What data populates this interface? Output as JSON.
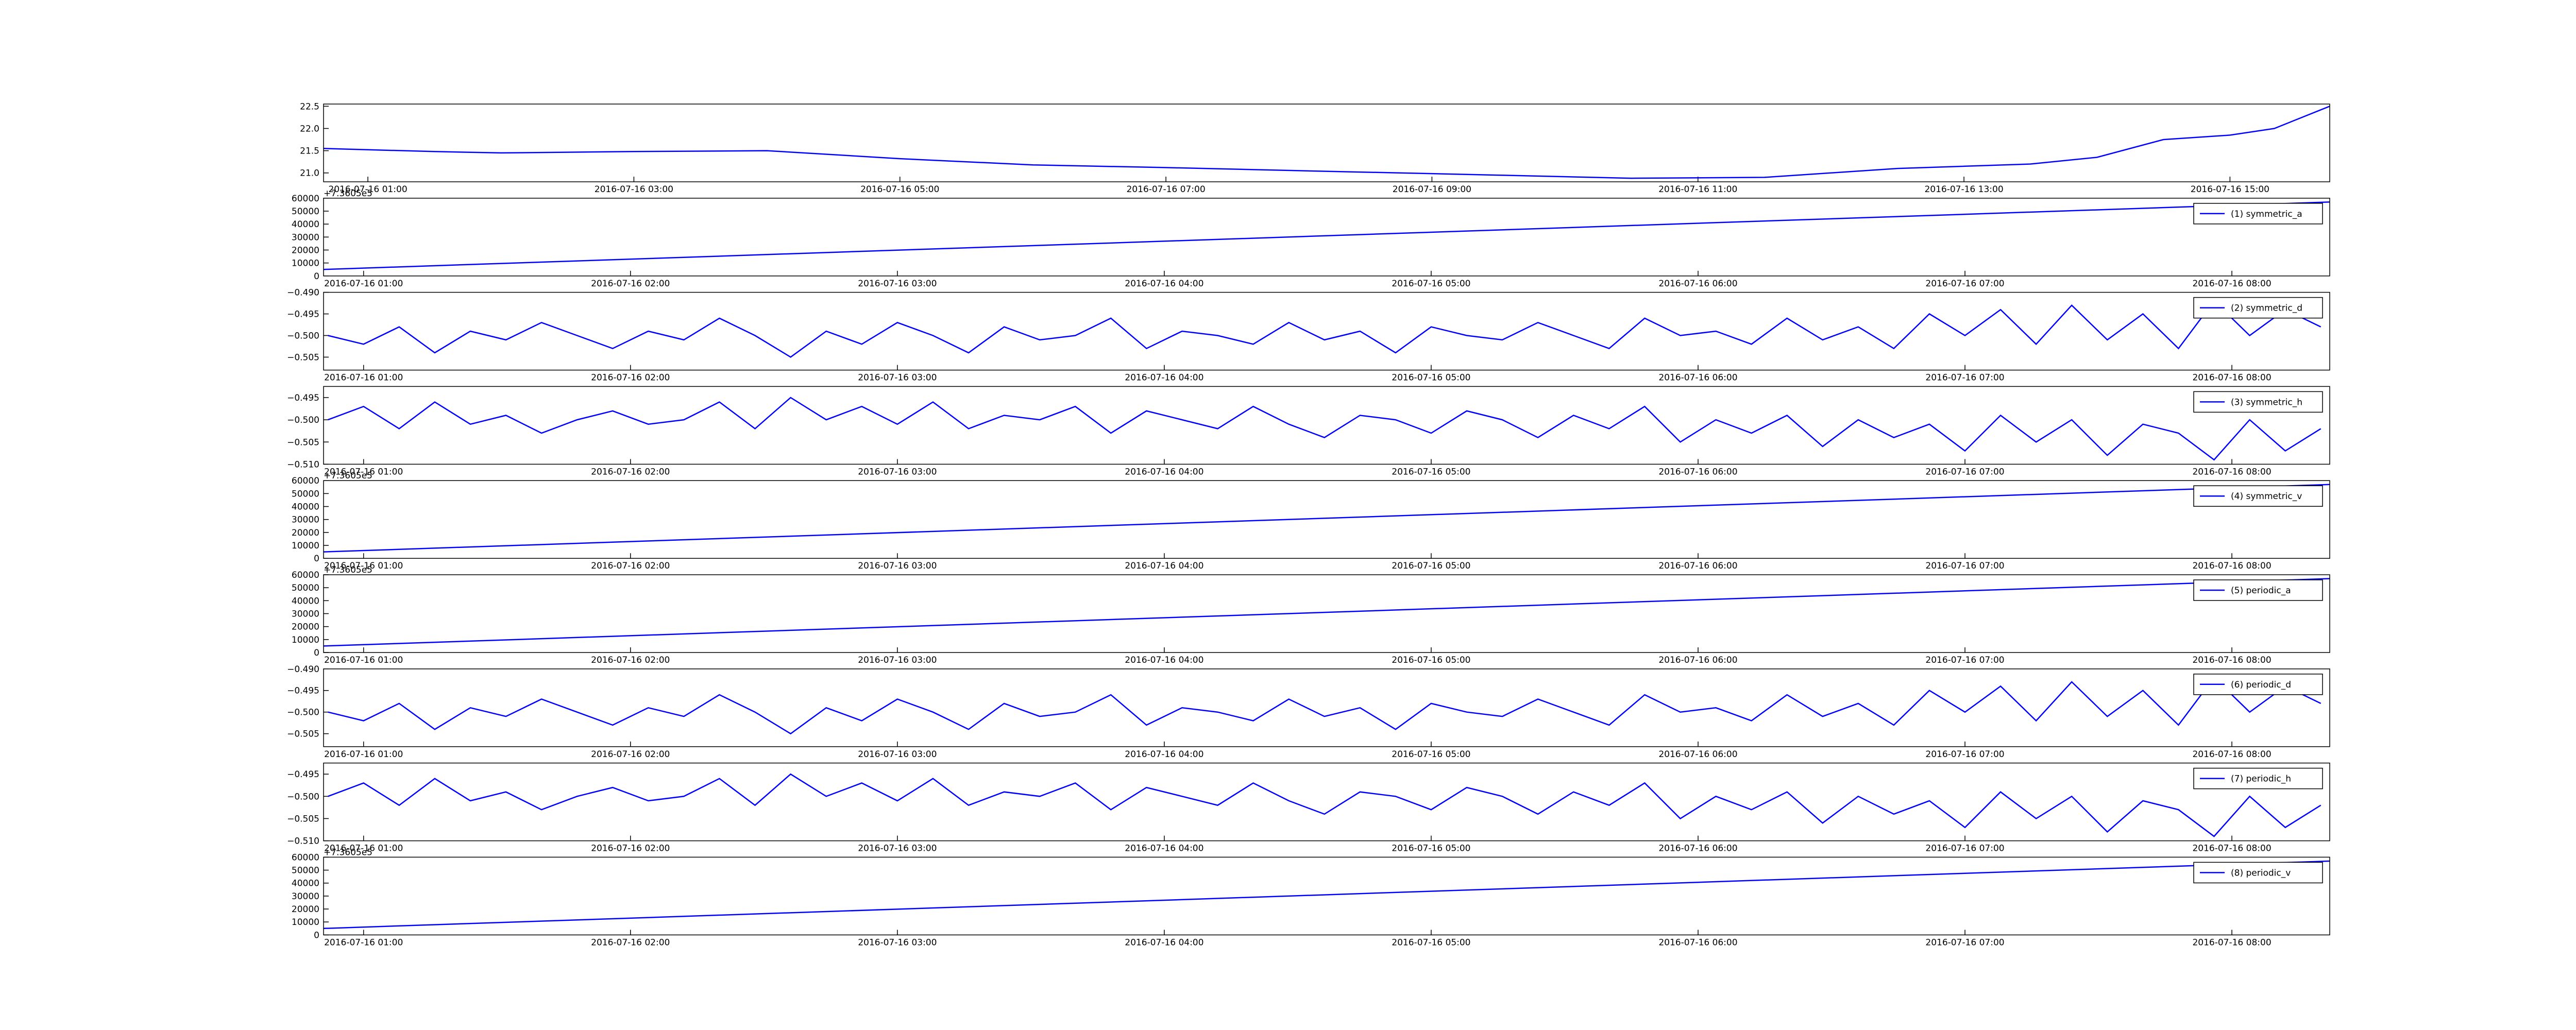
{
  "chart_data": [
    {
      "type": "line",
      "x": [
        "2016-07-16 00:40",
        "2016-07-16 01:30",
        "2016-07-16 02:00",
        "2016-07-16 03:00",
        "2016-07-16 04:00",
        "2016-07-16 05:00",
        "2016-07-16 06:00",
        "2016-07-16 07:00",
        "2016-07-16 08:00",
        "2016-07-16 09:30",
        "2016-07-16 10:30",
        "2016-07-16 11:30",
        "2016-07-16 12:30",
        "2016-07-16 13:30",
        "2016-07-16 14:00",
        "2016-07-16 14:30",
        "2016-07-16 15:00",
        "2016-07-16 15:20",
        "2016-07-16 15:45"
      ],
      "series": [
        {
          "color": "#0000ff",
          "values": [
            21.55,
            21.48,
            21.45,
            21.48,
            21.5,
            21.32,
            21.18,
            21.12,
            21.05,
            20.95,
            20.88,
            20.9,
            21.1,
            21.2,
            21.35,
            21.75,
            21.85,
            22.0,
            22.5
          ]
        }
      ],
      "xlim": [
        "2016-07-16 00:40",
        "2016-07-16 15:45"
      ],
      "xticks": [
        "2016-07-16 01:00",
        "2016-07-16 03:00",
        "2016-07-16 05:00",
        "2016-07-16 07:00",
        "2016-07-16 09:00",
        "2016-07-16 11:00",
        "2016-07-16 13:00",
        "2016-07-16 15:00"
      ],
      "ylim": [
        20.8,
        22.55
      ],
      "yticks": [
        {
          "value": 21,
          "label": "21.0"
        },
        21.5,
        {
          "value": 22,
          "label": "22.0"
        },
        22.5
      ]
    },
    {
      "type": "line",
      "x": [
        "2016-07-16 00:51",
        "2016-07-16 08:22"
      ],
      "series": [
        {
          "name": "(1) symmetric_a",
          "color": "#0000ff",
          "values": [
            5000,
            57000
          ]
        }
      ],
      "xlim": [
        "2016-07-16 00:51",
        "2016-07-16 08:22"
      ],
      "xticks": [
        "2016-07-16 01:00",
        "2016-07-16 02:00",
        "2016-07-16 03:00",
        "2016-07-16 04:00",
        "2016-07-16 05:00",
        "2016-07-16 06:00",
        "2016-07-16 07:00",
        "2016-07-16 08:00"
      ],
      "ylim": [
        0,
        60000
      ],
      "yticks": [
        0,
        10000,
        20000,
        30000,
        40000,
        50000,
        60000
      ],
      "offset_text": "+7.3605e5",
      "legend": "upper right"
    },
    {
      "type": "line",
      "x": [
        "2016-07-16 00:52",
        "2016-07-16 01:00",
        "2016-07-16 01:08",
        "2016-07-16 01:16",
        "2016-07-16 01:24",
        "2016-07-16 01:32",
        "2016-07-16 01:40",
        "2016-07-16 01:48",
        "2016-07-16 01:56",
        "2016-07-16 02:04",
        "2016-07-16 02:12",
        "2016-07-16 02:20",
        "2016-07-16 02:28",
        "2016-07-16 02:36",
        "2016-07-16 02:44",
        "2016-07-16 02:52",
        "2016-07-16 03:00",
        "2016-07-16 03:08",
        "2016-07-16 03:16",
        "2016-07-16 03:24",
        "2016-07-16 03:32",
        "2016-07-16 03:40",
        "2016-07-16 03:48",
        "2016-07-16 03:56",
        "2016-07-16 04:04",
        "2016-07-16 04:12",
        "2016-07-16 04:20",
        "2016-07-16 04:28",
        "2016-07-16 04:36",
        "2016-07-16 04:44",
        "2016-07-16 04:52",
        "2016-07-16 05:00",
        "2016-07-16 05:08",
        "2016-07-16 05:16",
        "2016-07-16 05:24",
        "2016-07-16 05:32",
        "2016-07-16 05:40",
        "2016-07-16 05:48",
        "2016-07-16 05:56",
        "2016-07-16 06:04",
        "2016-07-16 06:12",
        "2016-07-16 06:20",
        "2016-07-16 06:28",
        "2016-07-16 06:36",
        "2016-07-16 06:44",
        "2016-07-16 06:52",
        "2016-07-16 07:00",
        "2016-07-16 07:08",
        "2016-07-16 07:16",
        "2016-07-16 07:24",
        "2016-07-16 07:32",
        "2016-07-16 07:40",
        "2016-07-16 07:48",
        "2016-07-16 07:56",
        "2016-07-16 08:04",
        "2016-07-16 08:12",
        "2016-07-16 08:20"
      ],
      "series": [
        {
          "name": "(2) symmetric_d",
          "color": "#0000ff",
          "values": [
            -0.5,
            -0.502,
            -0.498,
            -0.504,
            -0.499,
            -0.501,
            -0.497,
            -0.5,
            -0.503,
            -0.499,
            -0.501,
            -0.496,
            -0.5,
            -0.505,
            -0.499,
            -0.502,
            -0.497,
            -0.5,
            -0.504,
            -0.498,
            -0.501,
            -0.5,
            -0.496,
            -0.503,
            -0.499,
            -0.5,
            -0.502,
            -0.497,
            -0.501,
            -0.499,
            -0.504,
            -0.498,
            -0.5,
            -0.501,
            -0.497,
            -0.5,
            -0.503,
            -0.496,
            -0.5,
            -0.499,
            -0.502,
            -0.496,
            -0.501,
            -0.498,
            -0.503,
            -0.495,
            -0.5,
            -0.494,
            -0.502,
            -0.493,
            -0.501,
            -0.495,
            -0.503,
            -0.492,
            -0.5,
            -0.494,
            -0.498
          ]
        }
      ],
      "xlim": [
        "2016-07-16 00:51",
        "2016-07-16 08:22"
      ],
      "xticks": [
        "2016-07-16 01:00",
        "2016-07-16 02:00",
        "2016-07-16 03:00",
        "2016-07-16 04:00",
        "2016-07-16 05:00",
        "2016-07-16 06:00",
        "2016-07-16 07:00",
        "2016-07-16 08:00"
      ],
      "ylim": [
        -0.508,
        -0.49
      ],
      "yticks": [
        {
          "value": -0.49,
          "label": "−0.490"
        },
        {
          "value": -0.495,
          "label": "−0.495"
        },
        {
          "value": -0.5,
          "label": "−0.500"
        },
        {
          "value": -0.505,
          "label": "−0.505"
        }
      ],
      "legend": "upper right"
    },
    {
      "type": "line",
      "x": [
        "2016-07-16 00:52",
        "2016-07-16 01:00",
        "2016-07-16 01:08",
        "2016-07-16 01:16",
        "2016-07-16 01:24",
        "2016-07-16 01:32",
        "2016-07-16 01:40",
        "2016-07-16 01:48",
        "2016-07-16 01:56",
        "2016-07-16 02:04",
        "2016-07-16 02:12",
        "2016-07-16 02:20",
        "2016-07-16 02:28",
        "2016-07-16 02:36",
        "2016-07-16 02:44",
        "2016-07-16 02:52",
        "2016-07-16 03:00",
        "2016-07-16 03:08",
        "2016-07-16 03:16",
        "2016-07-16 03:24",
        "2016-07-16 03:32",
        "2016-07-16 03:40",
        "2016-07-16 03:48",
        "2016-07-16 03:56",
        "2016-07-16 04:04",
        "2016-07-16 04:12",
        "2016-07-16 04:20",
        "2016-07-16 04:28",
        "2016-07-16 04:36",
        "2016-07-16 04:44",
        "2016-07-16 04:52",
        "2016-07-16 05:00",
        "2016-07-16 05:08",
        "2016-07-16 05:16",
        "2016-07-16 05:24",
        "2016-07-16 05:32",
        "2016-07-16 05:40",
        "2016-07-16 05:48",
        "2016-07-16 05:56",
        "2016-07-16 06:04",
        "2016-07-16 06:12",
        "2016-07-16 06:20",
        "2016-07-16 06:28",
        "2016-07-16 06:36",
        "2016-07-16 06:44",
        "2016-07-16 06:52",
        "2016-07-16 07:00",
        "2016-07-16 07:08",
        "2016-07-16 07:16",
        "2016-07-16 07:24",
        "2016-07-16 07:32",
        "2016-07-16 07:40",
        "2016-07-16 07:48",
        "2016-07-16 07:56",
        "2016-07-16 08:04",
        "2016-07-16 08:12",
        "2016-07-16 08:20"
      ],
      "series": [
        {
          "name": "(3) symmetric_h",
          "color": "#0000ff",
          "values": [
            -0.5,
            -0.497,
            -0.502,
            -0.496,
            -0.501,
            -0.499,
            -0.503,
            -0.5,
            -0.498,
            -0.501,
            -0.5,
            -0.496,
            -0.502,
            -0.495,
            -0.5,
            -0.497,
            -0.501,
            -0.496,
            -0.502,
            -0.499,
            -0.5,
            -0.497,
            -0.503,
            -0.498,
            -0.5,
            -0.502,
            -0.497,
            -0.501,
            -0.504,
            -0.499,
            -0.5,
            -0.503,
            -0.498,
            -0.5,
            -0.504,
            -0.499,
            -0.502,
            -0.497,
            -0.505,
            -0.5,
            -0.503,
            -0.499,
            -0.506,
            -0.5,
            -0.504,
            -0.501,
            -0.507,
            -0.499,
            -0.505,
            -0.5,
            -0.508,
            -0.501,
            -0.503,
            -0.509,
            -0.5,
            -0.507,
            -0.502
          ]
        }
      ],
      "xlim": [
        "2016-07-16 00:51",
        "2016-07-16 08:22"
      ],
      "xticks": [
        "2016-07-16 01:00",
        "2016-07-16 02:00",
        "2016-07-16 03:00",
        "2016-07-16 04:00",
        "2016-07-16 05:00",
        "2016-07-16 06:00",
        "2016-07-16 07:00",
        "2016-07-16 08:00"
      ],
      "ylim": [
        -0.51,
        -0.4925
      ],
      "yticks": [
        {
          "value": -0.495,
          "label": "−0.495"
        },
        {
          "value": -0.5,
          "label": "−0.500"
        },
        {
          "value": -0.505,
          "label": "−0.505"
        },
        {
          "value": -0.51,
          "label": "−0.510"
        }
      ],
      "legend": "upper right"
    },
    {
      "type": "line",
      "x": [
        "2016-07-16 00:51",
        "2016-07-16 08:22"
      ],
      "series": [
        {
          "name": "(4) symmetric_v",
          "color": "#0000ff",
          "values": [
            5000,
            57000
          ]
        }
      ],
      "xlim": [
        "2016-07-16 00:51",
        "2016-07-16 08:22"
      ],
      "xticks": [
        "2016-07-16 01:00",
        "2016-07-16 02:00",
        "2016-07-16 03:00",
        "2016-07-16 04:00",
        "2016-07-16 05:00",
        "2016-07-16 06:00",
        "2016-07-16 07:00",
        "2016-07-16 08:00"
      ],
      "ylim": [
        0,
        60000
      ],
      "yticks": [
        0,
        10000,
        20000,
        30000,
        40000,
        50000,
        60000
      ],
      "offset_text": "+7.3605e5",
      "legend": "upper right"
    },
    {
      "type": "line",
      "x": [
        "2016-07-16 00:51",
        "2016-07-16 08:22"
      ],
      "series": [
        {
          "name": "(5) periodic_a",
          "color": "#0000ff",
          "values": [
            5000,
            57000
          ]
        }
      ],
      "xlim": [
        "2016-07-16 00:51",
        "2016-07-16 08:22"
      ],
      "xticks": [
        "2016-07-16 01:00",
        "2016-07-16 02:00",
        "2016-07-16 03:00",
        "2016-07-16 04:00",
        "2016-07-16 05:00",
        "2016-07-16 06:00",
        "2016-07-16 07:00",
        "2016-07-16 08:00"
      ],
      "ylim": [
        0,
        60000
      ],
      "yticks": [
        0,
        10000,
        20000,
        30000,
        40000,
        50000,
        60000
      ],
      "offset_text": "+7.3605e5",
      "legend": "upper right"
    },
    {
      "type": "line",
      "x": [
        "2016-07-16 00:52",
        "2016-07-16 01:00",
        "2016-07-16 01:08",
        "2016-07-16 01:16",
        "2016-07-16 01:24",
        "2016-07-16 01:32",
        "2016-07-16 01:40",
        "2016-07-16 01:48",
        "2016-07-16 01:56",
        "2016-07-16 02:04",
        "2016-07-16 02:12",
        "2016-07-16 02:20",
        "2016-07-16 02:28",
        "2016-07-16 02:36",
        "2016-07-16 02:44",
        "2016-07-16 02:52",
        "2016-07-16 03:00",
        "2016-07-16 03:08",
        "2016-07-16 03:16",
        "2016-07-16 03:24",
        "2016-07-16 03:32",
        "2016-07-16 03:40",
        "2016-07-16 03:48",
        "2016-07-16 03:56",
        "2016-07-16 04:04",
        "2016-07-16 04:12",
        "2016-07-16 04:20",
        "2016-07-16 04:28",
        "2016-07-16 04:36",
        "2016-07-16 04:44",
        "2016-07-16 04:52",
        "2016-07-16 05:00",
        "2016-07-16 05:08",
        "2016-07-16 05:16",
        "2016-07-16 05:24",
        "2016-07-16 05:32",
        "2016-07-16 05:40",
        "2016-07-16 05:48",
        "2016-07-16 05:56",
        "2016-07-16 06:04",
        "2016-07-16 06:12",
        "2016-07-16 06:20",
        "2016-07-16 06:28",
        "2016-07-16 06:36",
        "2016-07-16 06:44",
        "2016-07-16 06:52",
        "2016-07-16 07:00",
        "2016-07-16 07:08",
        "2016-07-16 07:16",
        "2016-07-16 07:24",
        "2016-07-16 07:32",
        "2016-07-16 07:40",
        "2016-07-16 07:48",
        "2016-07-16 07:56",
        "2016-07-16 08:04",
        "2016-07-16 08:12",
        "2016-07-16 08:20"
      ],
      "series": [
        {
          "name": "(6) periodic_d",
          "color": "#0000ff",
          "values": [
            -0.5,
            -0.502,
            -0.498,
            -0.504,
            -0.499,
            -0.501,
            -0.497,
            -0.5,
            -0.503,
            -0.499,
            -0.501,
            -0.496,
            -0.5,
            -0.505,
            -0.499,
            -0.502,
            -0.497,
            -0.5,
            -0.504,
            -0.498,
            -0.501,
            -0.5,
            -0.496,
            -0.503,
            -0.499,
            -0.5,
            -0.502,
            -0.497,
            -0.501,
            -0.499,
            -0.504,
            -0.498,
            -0.5,
            -0.501,
            -0.497,
            -0.5,
            -0.503,
            -0.496,
            -0.5,
            -0.499,
            -0.502,
            -0.496,
            -0.501,
            -0.498,
            -0.503,
            -0.495,
            -0.5,
            -0.494,
            -0.502,
            -0.493,
            -0.501,
            -0.495,
            -0.503,
            -0.492,
            -0.5,
            -0.494,
            -0.498
          ]
        }
      ],
      "xlim": [
        "2016-07-16 00:51",
        "2016-07-16 08:22"
      ],
      "xticks": [
        "2016-07-16 01:00",
        "2016-07-16 02:00",
        "2016-07-16 03:00",
        "2016-07-16 04:00",
        "2016-07-16 05:00",
        "2016-07-16 06:00",
        "2016-07-16 07:00",
        "2016-07-16 08:00"
      ],
      "ylim": [
        -0.508,
        -0.49
      ],
      "yticks": [
        {
          "value": -0.49,
          "label": "−0.490"
        },
        {
          "value": -0.495,
          "label": "−0.495"
        },
        {
          "value": -0.5,
          "label": "−0.500"
        },
        {
          "value": -0.505,
          "label": "−0.505"
        }
      ],
      "legend": "upper right"
    },
    {
      "type": "line",
      "x": [
        "2016-07-16 00:52",
        "2016-07-16 01:00",
        "2016-07-16 01:08",
        "2016-07-16 01:16",
        "2016-07-16 01:24",
        "2016-07-16 01:32",
        "2016-07-16 01:40",
        "2016-07-16 01:48",
        "2016-07-16 01:56",
        "2016-07-16 02:04",
        "2016-07-16 02:12",
        "2016-07-16 02:20",
        "2016-07-16 02:28",
        "2016-07-16 02:36",
        "2016-07-16 02:44",
        "2016-07-16 02:52",
        "2016-07-16 03:00",
        "2016-07-16 03:08",
        "2016-07-16 03:16",
        "2016-07-16 03:24",
        "2016-07-16 03:32",
        "2016-07-16 03:40",
        "2016-07-16 03:48",
        "2016-07-16 03:56",
        "2016-07-16 04:04",
        "2016-07-16 04:12",
        "2016-07-16 04:20",
        "2016-07-16 04:28",
        "2016-07-16 04:36",
        "2016-07-16 04:44",
        "2016-07-16 04:52",
        "2016-07-16 05:00",
        "2016-07-16 05:08",
        "2016-07-16 05:16",
        "2016-07-16 05:24",
        "2016-07-16 05:32",
        "2016-07-16 05:40",
        "2016-07-16 05:48",
        "2016-07-16 05:56",
        "2016-07-16 06:04",
        "2016-07-16 06:12",
        "2016-07-16 06:20",
        "2016-07-16 06:28",
        "2016-07-16 06:36",
        "2016-07-16 06:44",
        "2016-07-16 06:52",
        "2016-07-16 07:00",
        "2016-07-16 07:08",
        "2016-07-16 07:16",
        "2016-07-16 07:24",
        "2016-07-16 07:32",
        "2016-07-16 07:40",
        "2016-07-16 07:48",
        "2016-07-16 07:56",
        "2016-07-16 08:04",
        "2016-07-16 08:12",
        "2016-07-16 08:20"
      ],
      "series": [
        {
          "name": "(7) periodic_h",
          "color": "#0000ff",
          "values": [
            -0.5,
            -0.497,
            -0.502,
            -0.496,
            -0.501,
            -0.499,
            -0.503,
            -0.5,
            -0.498,
            -0.501,
            -0.5,
            -0.496,
            -0.502,
            -0.495,
            -0.5,
            -0.497,
            -0.501,
            -0.496,
            -0.502,
            -0.499,
            -0.5,
            -0.497,
            -0.503,
            -0.498,
            -0.5,
            -0.502,
            -0.497,
            -0.501,
            -0.504,
            -0.499,
            -0.5,
            -0.503,
            -0.498,
            -0.5,
            -0.504,
            -0.499,
            -0.502,
            -0.497,
            -0.505,
            -0.5,
            -0.503,
            -0.499,
            -0.506,
            -0.5,
            -0.504,
            -0.501,
            -0.507,
            -0.499,
            -0.505,
            -0.5,
            -0.508,
            -0.501,
            -0.503,
            -0.509,
            -0.5,
            -0.507,
            -0.502
          ]
        }
      ],
      "xlim": [
        "2016-07-16 00:51",
        "2016-07-16 08:22"
      ],
      "xticks": [
        "2016-07-16 01:00",
        "2016-07-16 02:00",
        "2016-07-16 03:00",
        "2016-07-16 04:00",
        "2016-07-16 05:00",
        "2016-07-16 06:00",
        "2016-07-16 07:00",
        "2016-07-16 08:00"
      ],
      "ylim": [
        -0.51,
        -0.4925
      ],
      "yticks": [
        {
          "value": -0.495,
          "label": "−0.495"
        },
        {
          "value": -0.5,
          "label": "−0.500"
        },
        {
          "value": -0.505,
          "label": "−0.505"
        },
        {
          "value": -0.51,
          "label": "−0.510"
        }
      ],
      "legend": "upper right"
    },
    {
      "type": "line",
      "x": [
        "2016-07-16 00:51",
        "2016-07-16 08:22"
      ],
      "series": [
        {
          "name": "(8) periodic_v",
          "color": "#0000ff",
          "values": [
            5000,
            57000
          ]
        }
      ],
      "xlim": [
        "2016-07-16 00:51",
        "2016-07-16 08:22"
      ],
      "xticks": [
        "2016-07-16 01:00",
        "2016-07-16 02:00",
        "2016-07-16 03:00",
        "2016-07-16 04:00",
        "2016-07-16 05:00",
        "2016-07-16 06:00",
        "2016-07-16 07:00",
        "2016-07-16 08:00"
      ],
      "ylim": [
        0,
        60000
      ],
      "yticks": [
        0,
        10000,
        20000,
        30000,
        40000,
        50000,
        60000
      ],
      "offset_text": "+7.3605e5",
      "legend": "upper right"
    }
  ]
}
